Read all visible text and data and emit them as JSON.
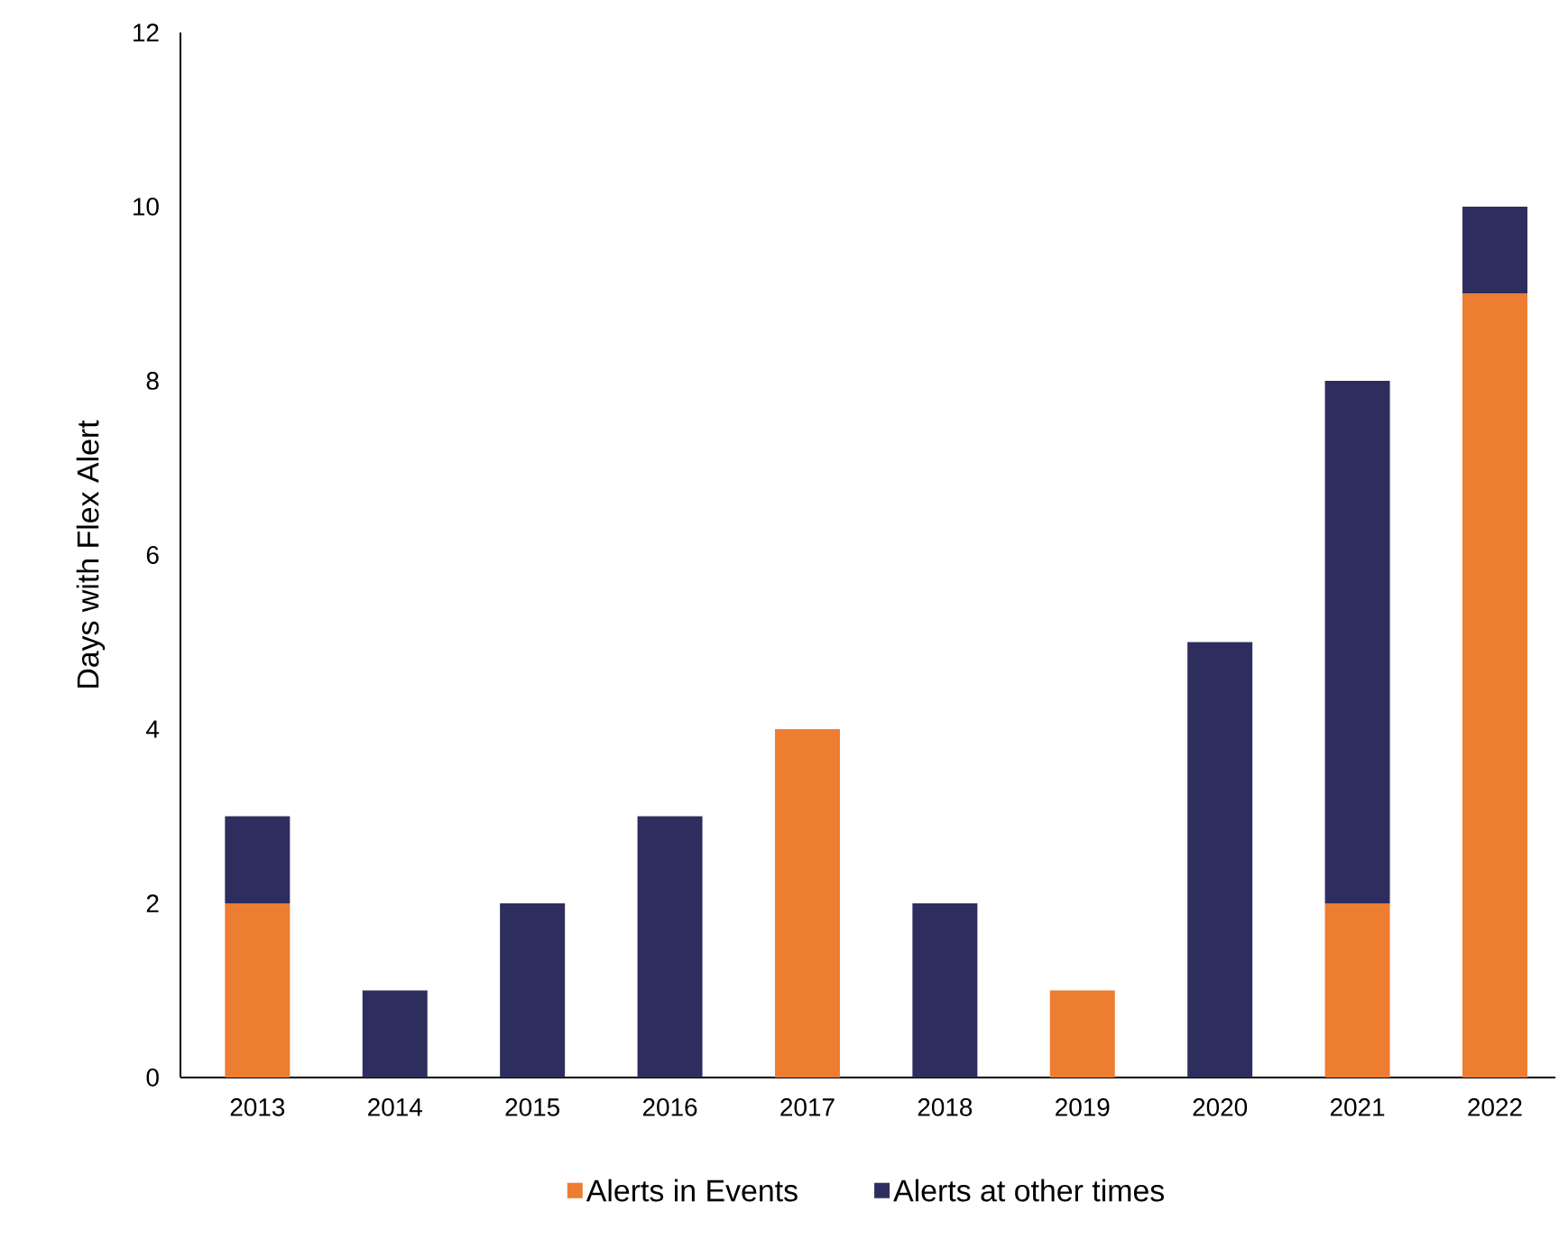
{
  "chart_data": {
    "type": "bar",
    "stacked": true,
    "ylabel": "Days with Flex Alert",
    "categories": [
      "2013",
      "2014",
      "2015",
      "2016",
      "2017",
      "2018",
      "2019",
      "2020",
      "2021",
      "2022"
    ],
    "series": [
      {
        "name": "Alerts in Events",
        "color": "#ed7d31",
        "values": [
          2,
          0,
          0,
          0,
          4,
          0,
          1,
          0,
          2,
          9
        ]
      },
      {
        "name": "Alerts at other times",
        "color": "#2e2e5e",
        "values": [
          1,
          1,
          2,
          3,
          0,
          2,
          0,
          5,
          6,
          1
        ]
      }
    ],
    "ylim": [
      0,
      12
    ],
    "yticks": [
      0,
      2,
      4,
      6,
      8,
      10,
      12
    ],
    "grid": false,
    "legend": "bottom"
  }
}
